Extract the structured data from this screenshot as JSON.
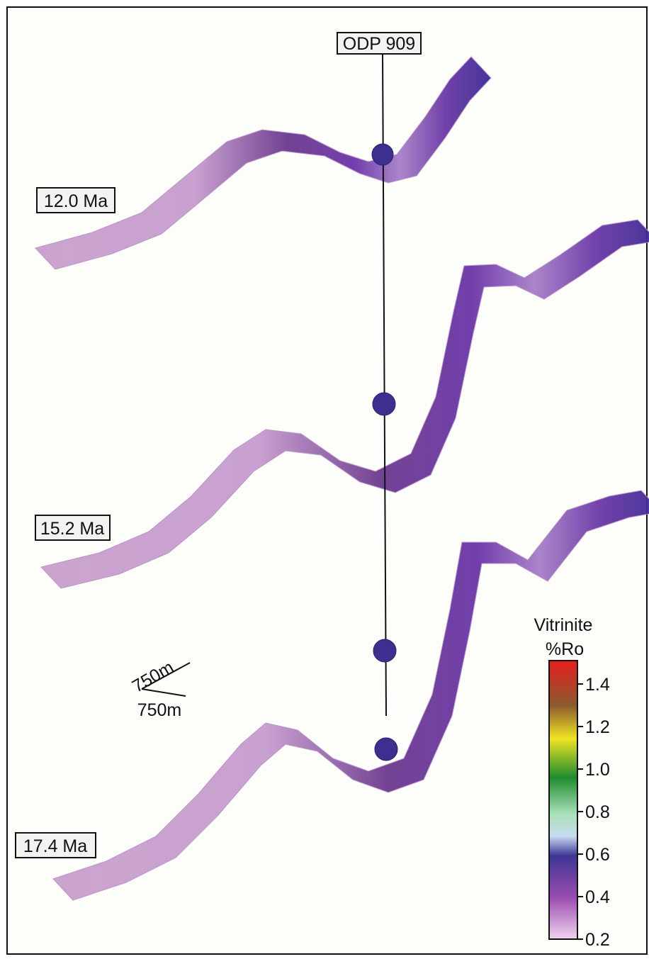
{
  "well": {
    "label": "ODP 909"
  },
  "horizons": [
    {
      "label": "12.0 Ma"
    },
    {
      "label": "15.2 Ma"
    },
    {
      "label": "17.4 Ma"
    }
  ],
  "scale_bar": {
    "labels": [
      "750m",
      "750m"
    ]
  },
  "colorbar": {
    "title": "Vitrinite",
    "unit": "%Ro",
    "ticks": [
      "1.4",
      "1.2",
      "1.0",
      "0.8",
      "0.6",
      "0.4",
      "0.2"
    ]
  }
}
